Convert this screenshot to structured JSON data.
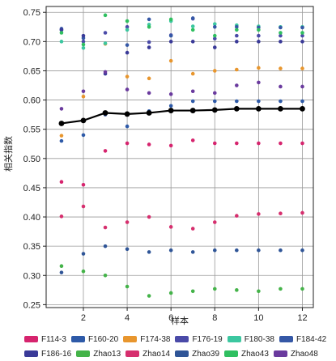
{
  "chart_data": {
    "type": "scatter",
    "xlabel": "样本",
    "ylabel": "相关指数",
    "xlim": [
      0.3,
      12.5
    ],
    "ylim": [
      0.245,
      0.76
    ],
    "x_ticks": [
      2,
      4,
      6,
      8,
      10,
      12
    ],
    "y_ticks": [
      0.25,
      0.3,
      0.35,
      0.4,
      0.45,
      0.5,
      0.55,
      0.6,
      0.65,
      0.7,
      0.75
    ],
    "grid": true,
    "legend_position": "bottom",
    "x": [
      1,
      2,
      3,
      4,
      5,
      6,
      7,
      8,
      9,
      10,
      11,
      12
    ],
    "series": [
      {
        "name": "F114-3",
        "color": "#d6246e",
        "values": [
          0.46,
          0.455,
          0.513,
          0.526,
          0.524,
          0.522,
          0.531,
          0.526,
          0.526,
          0.526,
          0.526,
          0.526
        ]
      },
      {
        "name": "F160-20",
        "color": "#2e5aa8",
        "values": [
          0.53,
          0.54,
          0.579,
          0.555,
          0.581,
          0.59,
          0.598,
          0.598,
          0.598,
          0.598,
          0.598,
          0.598
        ]
      },
      {
        "name": "F174-38",
        "color": "#e8962e",
        "values": [
          0.539,
          0.606,
          0.696,
          0.64,
          0.637,
          0.667,
          0.645,
          0.65,
          0.652,
          0.655,
          0.654,
          0.654
        ]
      },
      {
        "name": "F176-19",
        "color": "#4a4aa8",
        "values": [
          0.72,
          0.7,
          0.715,
          0.725,
          0.699,
          0.711,
          0.739,
          0.705,
          0.71,
          0.71,
          0.71,
          0.71
        ]
      },
      {
        "name": "F180-38",
        "color": "#3cc7a0",
        "values": [
          0.7,
          0.689,
          0.697,
          0.72,
          0.729,
          0.735,
          0.726,
          0.73,
          0.728,
          0.726,
          0.725,
          0.725
        ]
      },
      {
        "name": "F184-42",
        "color": "#3558a6",
        "values": [
          0.722,
          0.706,
          0.575,
          0.694,
          0.738,
          0.71,
          0.74,
          0.725,
          0.725,
          0.724,
          0.724,
          0.724
        ]
      },
      {
        "name": "F186-16",
        "color": "#3a3a98",
        "values": [
          0.72,
          0.71,
          0.645,
          0.681,
          0.69,
          0.7,
          0.7,
          0.69,
          0.7,
          0.7,
          0.7,
          0.7
        ]
      },
      {
        "name": "Zhao13",
        "color": "#44b349",
        "values": [
          0.316,
          0.307,
          0.3,
          0.281,
          0.265,
          0.27,
          0.273,
          0.277,
          0.275,
          0.273,
          0.277,
          0.277
        ]
      },
      {
        "name": "Zhao14",
        "color": "#d62f6e",
        "values": [
          0.401,
          0.418,
          0.382,
          0.391,
          0.4,
          0.383,
          0.38,
          0.391,
          0.402,
          0.405,
          0.406,
          0.407
        ]
      },
      {
        "name": "Zhao39",
        "color": "#2f5597",
        "values": [
          0.305,
          0.337,
          0.35,
          0.345,
          0.34,
          0.343,
          0.34,
          0.343,
          0.343,
          0.343,
          0.343,
          0.343
        ]
      },
      {
        "name": "Zhao43",
        "color": "#2fbf60",
        "values": [
          0.715,
          0.695,
          0.745,
          0.735,
          0.725,
          0.738,
          0.72,
          0.71,
          0.72,
          0.72,
          0.715,
          0.715
        ]
      },
      {
        "name": "Zhao48",
        "color": "#6a3a9e",
        "values": [
          0.585,
          0.615,
          0.648,
          0.618,
          0.612,
          0.61,
          0.615,
          0.612,
          0.625,
          0.63,
          0.623,
          0.623
        ]
      }
    ],
    "mean_line": {
      "color": "#000000",
      "values": [
        0.56,
        0.565,
        0.578,
        0.576,
        0.578,
        0.582,
        0.582,
        0.583,
        0.585,
        0.585,
        0.585,
        0.585
      ]
    }
  }
}
